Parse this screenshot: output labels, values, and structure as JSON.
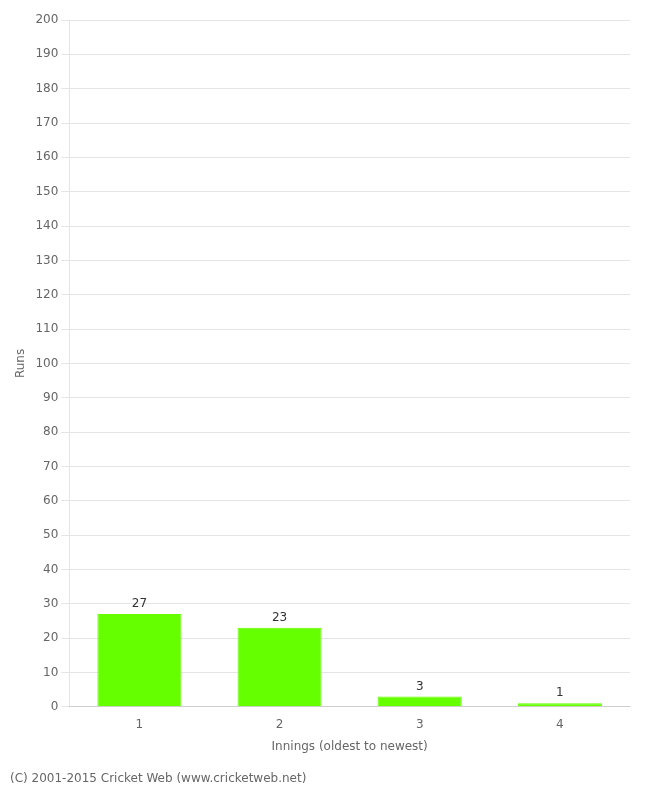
{
  "chart_data": {
    "type": "bar",
    "categories": [
      "1",
      "2",
      "3",
      "4"
    ],
    "values": [
      27,
      23,
      3,
      1
    ],
    "color": "#66ff00",
    "xlabel": "Innings (oldest to newest)",
    "ylabel": "Runs",
    "ylim": [
      0,
      200
    ],
    "yticks": [
      0,
      10,
      20,
      30,
      40,
      50,
      60,
      70,
      80,
      90,
      100,
      110,
      120,
      130,
      140,
      150,
      160,
      170,
      180,
      190,
      200
    ],
    "grid": true,
    "legend": false,
    "data_labels": true,
    "annotations": [
      "(C) 2001-2015 Cricket Web (www.cricketweb.net)"
    ]
  }
}
